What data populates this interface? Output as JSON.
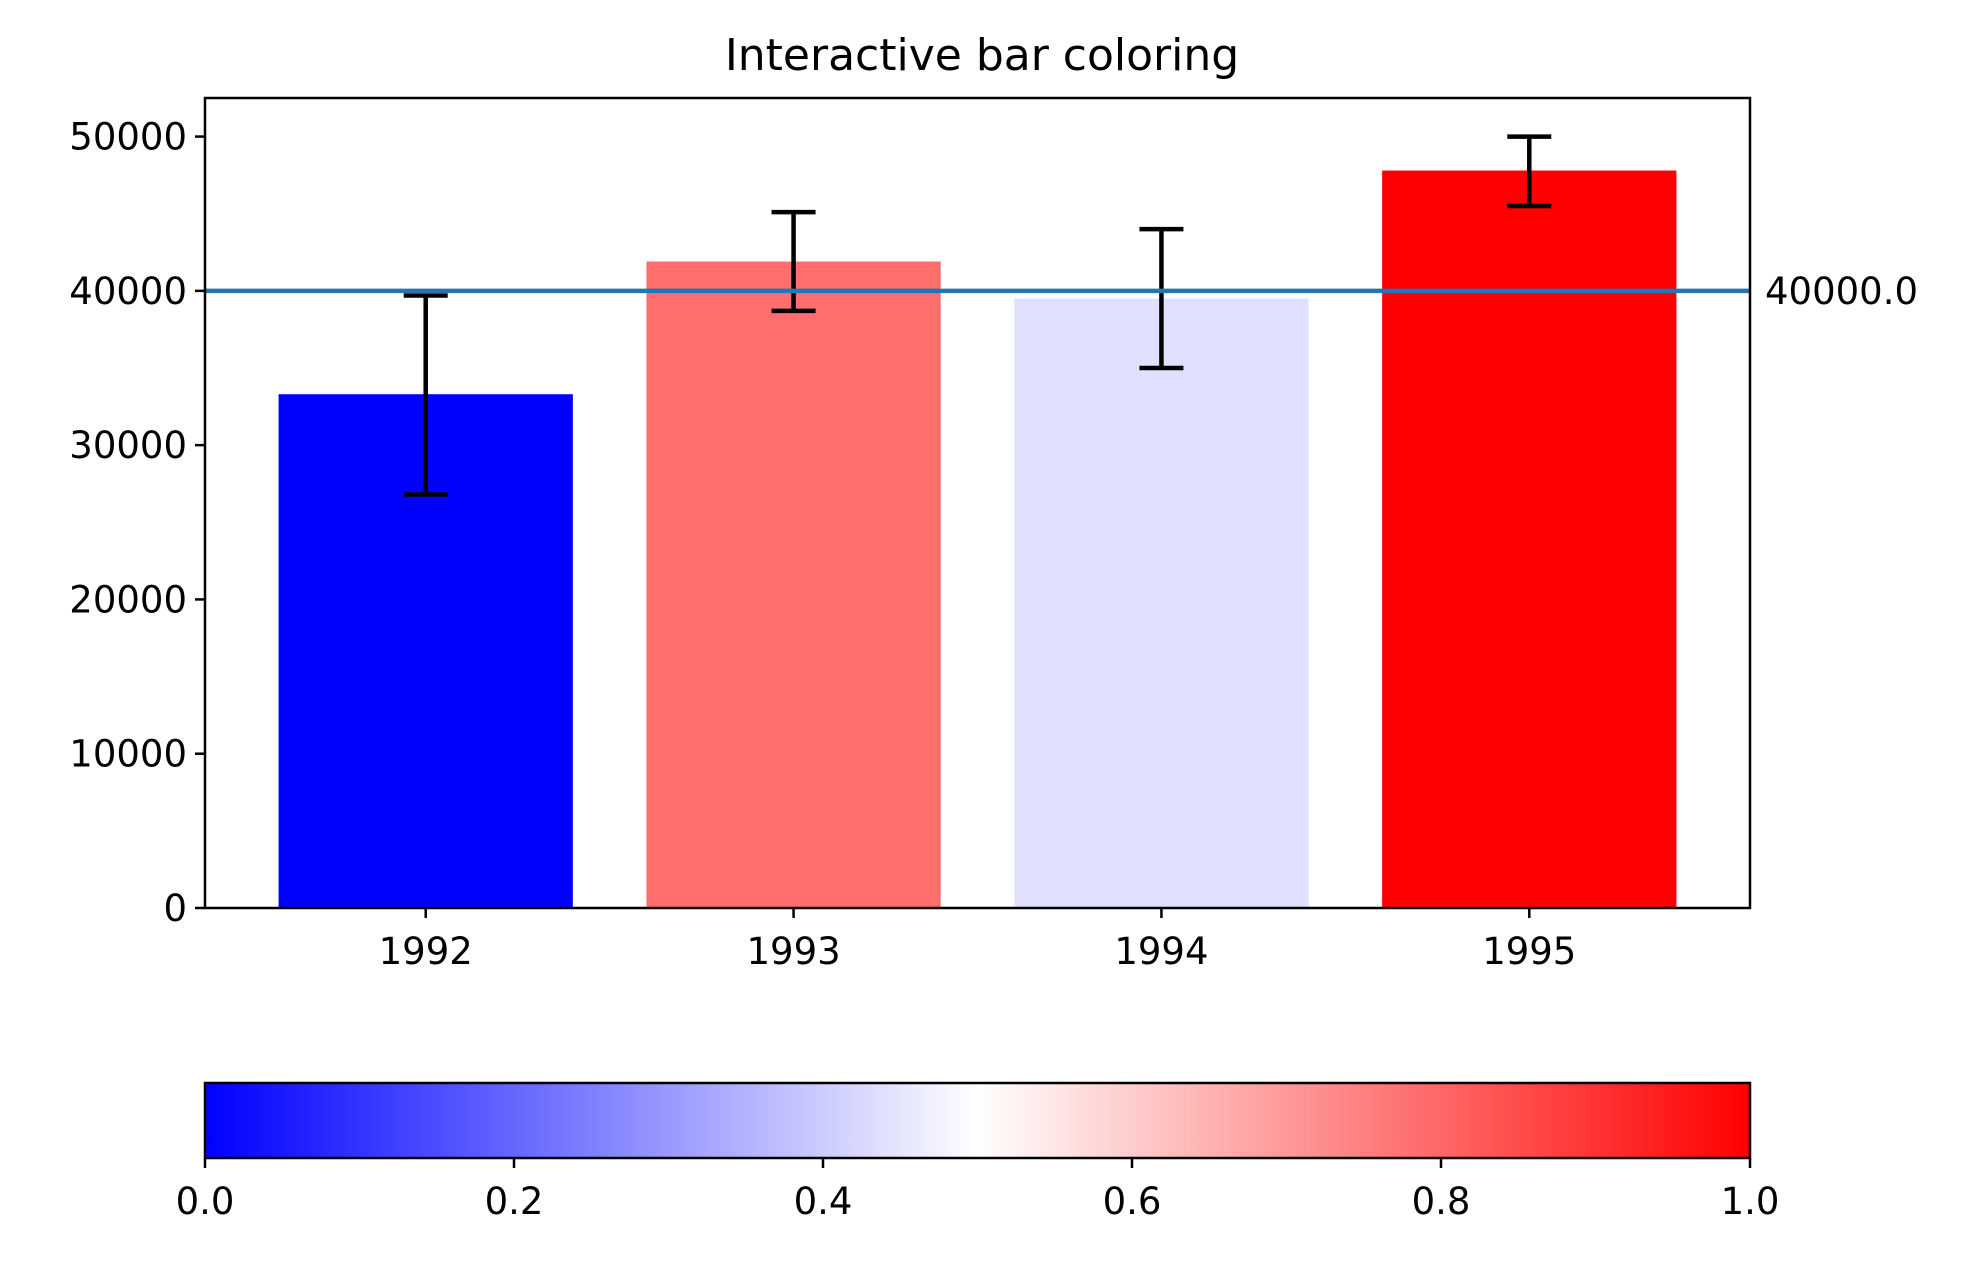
{
  "chart_data": {
    "type": "bar",
    "title": "Interactive bar coloring",
    "categories": [
      "1992",
      "1993",
      "1994",
      "1995"
    ],
    "values": [
      33300,
      41900,
      39500,
      47800
    ],
    "errors": [
      {
        "low": 26800,
        "high": 39700
      },
      {
        "low": 38700,
        "high": 45100
      },
      {
        "low": 35000,
        "high": 44000
      },
      {
        "low": 45500,
        "high": 50000
      }
    ],
    "bar_colors": [
      "#0000ff",
      "#ff6d6d",
      "#e1e1ff",
      "#ff0000"
    ],
    "ylim": [
      0,
      52500
    ],
    "yticks": [
      0,
      10000,
      20000,
      30000,
      40000,
      50000
    ],
    "reference_line": {
      "value": 40000,
      "label": "40000.0",
      "color": "#1f77b4"
    },
    "grid": false,
    "colorbar": {
      "range": [
        0,
        1
      ],
      "ticks": [
        "0.0",
        "0.2",
        "0.4",
        "0.6",
        "0.8",
        "1.0"
      ],
      "colors": [
        "#0000ff",
        "#ffffff",
        "#ff0000"
      ]
    }
  }
}
